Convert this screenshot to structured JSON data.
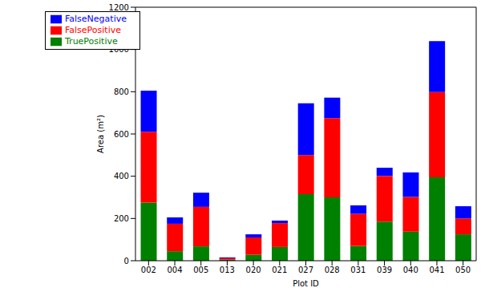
{
  "chart_data": {
    "type": "bar",
    "stacked": true,
    "x_label": "Plot ID",
    "y_label": "Area (m²)",
    "categories": [
      "002",
      "004",
      "005",
      "013",
      "020",
      "021",
      "027",
      "028",
      "031",
      "039",
      "040",
      "041",
      "050"
    ],
    "series": [
      {
        "name": "TruePositive",
        "color": "#008000",
        "values": [
          275,
          45,
          68,
          5,
          28,
          65,
          315,
          300,
          70,
          185,
          138,
          395,
          125
        ]
      },
      {
        "name": "FalsePositive",
        "color": "#ff0000",
        "values": [
          335,
          130,
          187,
          7,
          82,
          113,
          185,
          375,
          152,
          217,
          164,
          403,
          75
        ]
      },
      {
        "name": "FalseNegative",
        "color": "#0000ff",
        "values": [
          195,
          30,
          67,
          4,
          15,
          12,
          245,
          97,
          40,
          38,
          116,
          242,
          58
        ]
      }
    ],
    "ylim": [
      0,
      1200
    ],
    "yticks": [
      0,
      200,
      400,
      600,
      800,
      1000,
      1200
    ],
    "legend": "upper left",
    "grid": false
  }
}
